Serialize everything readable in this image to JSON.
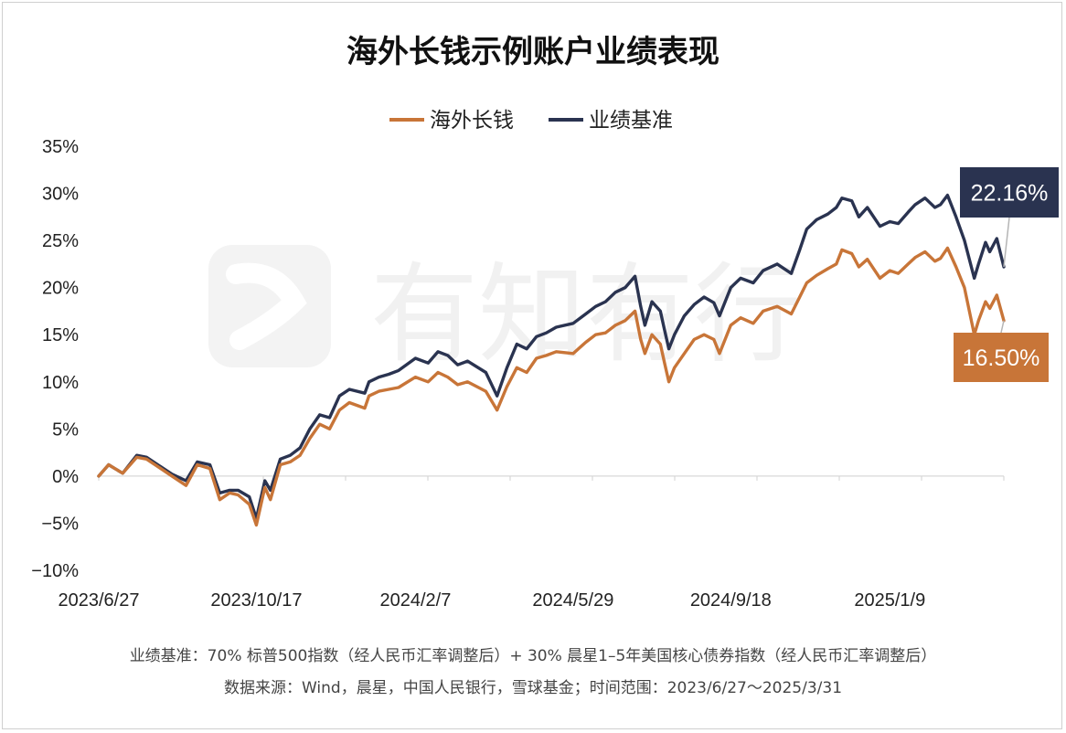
{
  "chart_data": {
    "type": "line",
    "title": "海外长钱示例账户业绩表现",
    "legend_position": "top-center",
    "grid": false,
    "xlabel": "",
    "ylabel": "",
    "ylim": [
      -0.1,
      0.35
    ],
    "y_ticks": [
      -0.1,
      -0.05,
      0.0,
      0.05,
      0.1,
      0.15,
      0.2,
      0.25,
      0.3,
      0.35
    ],
    "y_tick_labels": [
      "−10%",
      "−5%",
      "0%",
      "5%",
      "10%",
      "15%",
      "20%",
      "25%",
      "30%",
      "35%"
    ],
    "x_start": "2023-06-27",
    "x_end": "2025-03-31",
    "x_ticks": [
      "2023-06-27",
      "2023-10-17",
      "2024-02-07",
      "2024-05-29",
      "2024-09-18",
      "2025-01-09"
    ],
    "x_tick_labels": [
      "2023/6/27",
      "2023/10/17",
      "2024/2/7",
      "2024/5/29",
      "2024/9/18",
      "2025/1/9"
    ],
    "series": [
      {
        "name": "海外长钱",
        "color": "#c87538",
        "end_label": "16.50%",
        "x": [
          "2023-06-27",
          "2023-07-04",
          "2023-07-14",
          "2023-07-24",
          "2023-07-31",
          "2023-08-10",
          "2023-08-18",
          "2023-08-28",
          "2023-09-05",
          "2023-09-14",
          "2023-09-21",
          "2023-09-28",
          "2023-10-04",
          "2023-10-12",
          "2023-10-17",
          "2023-10-23",
          "2023-10-27",
          "2023-11-03",
          "2023-11-10",
          "2023-11-17",
          "2023-11-24",
          "2023-12-01",
          "2023-12-08",
          "2023-12-15",
          "2023-12-22",
          "2024-01-02",
          "2024-01-05",
          "2024-01-12",
          "2024-01-19",
          "2024-01-26",
          "2024-02-07",
          "2024-02-16",
          "2024-02-23",
          "2024-03-01",
          "2024-03-08",
          "2024-03-15",
          "2024-03-28",
          "2024-04-05",
          "2024-04-12",
          "2024-04-19",
          "2024-04-26",
          "2024-05-03",
          "2024-05-10",
          "2024-05-17",
          "2024-05-29",
          "2024-06-07",
          "2024-06-14",
          "2024-06-21",
          "2024-06-28",
          "2024-07-05",
          "2024-07-12",
          "2024-07-16",
          "2024-07-19",
          "2024-07-24",
          "2024-07-30",
          "2024-08-02",
          "2024-08-05",
          "2024-08-09",
          "2024-08-16",
          "2024-08-23",
          "2024-08-30",
          "2024-09-06",
          "2024-09-10",
          "2024-09-18",
          "2024-09-25",
          "2024-10-04",
          "2024-10-11",
          "2024-10-21",
          "2024-10-31",
          "2024-11-06",
          "2024-11-11",
          "2024-11-18",
          "2024-11-26",
          "2024-12-02",
          "2024-12-06",
          "2024-12-13",
          "2024-12-18",
          "2024-12-24",
          "2025-01-02",
          "2025-01-09",
          "2025-01-15",
          "2025-01-22",
          "2025-01-27",
          "2025-02-03",
          "2025-02-10",
          "2025-02-14",
          "2025-02-19",
          "2025-02-25",
          "2025-03-03",
          "2025-03-10",
          "2025-03-13",
          "2025-03-18",
          "2025-03-21",
          "2025-03-26",
          "2025-03-31"
        ],
        "values": [
          0.0,
          0.012,
          0.003,
          0.02,
          0.018,
          0.008,
          0.0,
          -0.01,
          0.012,
          0.008,
          -0.025,
          -0.018,
          -0.02,
          -0.03,
          -0.052,
          -0.012,
          -0.025,
          0.012,
          0.015,
          0.022,
          0.04,
          0.055,
          0.05,
          0.07,
          0.078,
          0.072,
          0.085,
          0.09,
          0.092,
          0.094,
          0.105,
          0.1,
          0.11,
          0.105,
          0.097,
          0.1,
          0.09,
          0.07,
          0.095,
          0.115,
          0.11,
          0.125,
          0.128,
          0.132,
          0.13,
          0.142,
          0.15,
          0.152,
          0.16,
          0.165,
          0.175,
          0.145,
          0.13,
          0.15,
          0.14,
          0.12,
          0.1,
          0.115,
          0.13,
          0.145,
          0.15,
          0.145,
          0.13,
          0.16,
          0.168,
          0.162,
          0.175,
          0.18,
          0.172,
          0.19,
          0.205,
          0.213,
          0.22,
          0.225,
          0.24,
          0.236,
          0.222,
          0.23,
          0.21,
          0.218,
          0.215,
          0.225,
          0.232,
          0.238,
          0.228,
          0.231,
          0.242,
          0.222,
          0.2,
          0.15,
          0.165,
          0.185,
          0.178,
          0.192,
          0.165
        ]
      },
      {
        "name": "业绩基准",
        "color": "#2a3350",
        "end_label": "22.16%",
        "x": [
          "2023-06-27",
          "2023-07-04",
          "2023-07-14",
          "2023-07-24",
          "2023-07-31",
          "2023-08-10",
          "2023-08-18",
          "2023-08-28",
          "2023-09-05",
          "2023-09-14",
          "2023-09-21",
          "2023-09-28",
          "2023-10-04",
          "2023-10-12",
          "2023-10-17",
          "2023-10-23",
          "2023-10-27",
          "2023-11-03",
          "2023-11-10",
          "2023-11-17",
          "2023-11-24",
          "2023-12-01",
          "2023-12-08",
          "2023-12-15",
          "2023-12-22",
          "2024-01-02",
          "2024-01-05",
          "2024-01-12",
          "2024-01-19",
          "2024-01-26",
          "2024-02-07",
          "2024-02-16",
          "2024-02-23",
          "2024-03-01",
          "2024-03-08",
          "2024-03-15",
          "2024-03-28",
          "2024-04-05",
          "2024-04-12",
          "2024-04-19",
          "2024-04-26",
          "2024-05-03",
          "2024-05-10",
          "2024-05-17",
          "2024-05-29",
          "2024-06-07",
          "2024-06-14",
          "2024-06-21",
          "2024-06-28",
          "2024-07-05",
          "2024-07-12",
          "2024-07-16",
          "2024-07-19",
          "2024-07-24",
          "2024-07-30",
          "2024-08-02",
          "2024-08-05",
          "2024-08-09",
          "2024-08-16",
          "2024-08-23",
          "2024-08-30",
          "2024-09-06",
          "2024-09-10",
          "2024-09-18",
          "2024-09-25",
          "2024-10-04",
          "2024-10-11",
          "2024-10-21",
          "2024-10-31",
          "2024-11-06",
          "2024-11-11",
          "2024-11-18",
          "2024-11-26",
          "2024-12-02",
          "2024-12-06",
          "2024-12-13",
          "2024-12-18",
          "2024-12-24",
          "2025-01-02",
          "2025-01-09",
          "2025-01-15",
          "2025-01-22",
          "2025-01-27",
          "2025-02-03",
          "2025-02-10",
          "2025-02-14",
          "2025-02-19",
          "2025-02-25",
          "2025-03-03",
          "2025-03-10",
          "2025-03-13",
          "2025-03-18",
          "2025-03-21",
          "2025-03-26",
          "2025-03-31"
        ],
        "values": [
          0.0,
          0.012,
          0.003,
          0.022,
          0.02,
          0.01,
          0.002,
          -0.005,
          0.015,
          0.012,
          -0.018,
          -0.015,
          -0.015,
          -0.022,
          -0.045,
          -0.005,
          -0.015,
          0.018,
          0.022,
          0.03,
          0.05,
          0.065,
          0.062,
          0.085,
          0.092,
          0.088,
          0.1,
          0.105,
          0.108,
          0.112,
          0.125,
          0.12,
          0.132,
          0.128,
          0.118,
          0.122,
          0.11,
          0.085,
          0.115,
          0.14,
          0.135,
          0.148,
          0.152,
          0.158,
          0.162,
          0.172,
          0.18,
          0.185,
          0.195,
          0.2,
          0.212,
          0.18,
          0.16,
          0.185,
          0.175,
          0.155,
          0.135,
          0.15,
          0.17,
          0.182,
          0.19,
          0.184,
          0.17,
          0.2,
          0.21,
          0.205,
          0.218,
          0.225,
          0.215,
          0.24,
          0.262,
          0.272,
          0.278,
          0.285,
          0.295,
          0.292,
          0.275,
          0.285,
          0.265,
          0.27,
          0.268,
          0.28,
          0.288,
          0.295,
          0.285,
          0.288,
          0.298,
          0.275,
          0.25,
          0.21,
          0.225,
          0.248,
          0.238,
          0.252,
          0.222
        ]
      }
    ],
    "watermark": "有知有行"
  },
  "footnotes": [
    "业绩基准：70% 标普500指数（经人民币汇率调整后）+ 30% 晨星1–5年美国核心债券指数（经人民币汇率调整后）",
    "数据来源：Wind，晨星，中国人民银行，雪球基金；时间范围：2023/6/27～2025/3/31"
  ]
}
